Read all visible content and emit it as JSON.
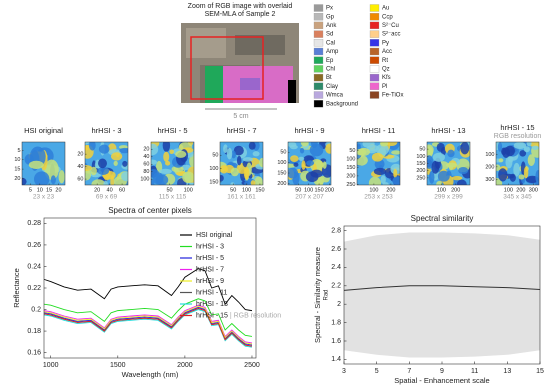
{
  "overview": {
    "title": [
      "Zoom of RGB image with overlaid",
      "SEM-MLA of Sample 2"
    ],
    "scale_label": "5 cm",
    "legend": [
      {
        "name": "Px",
        "color": "#9a9a9a"
      },
      {
        "name": "Gp",
        "color": "#b8b8b8"
      },
      {
        "name": "Ank",
        "color": "#c9a27e"
      },
      {
        "name": "Sd",
        "color": "#d9805e"
      },
      {
        "name": "Cal",
        "color": "#e6e6e6"
      },
      {
        "name": "Amp",
        "color": "#5a7fd6"
      },
      {
        "name": "Ep",
        "color": "#1fa85a"
      },
      {
        "name": "Chl",
        "color": "#5fd35f"
      },
      {
        "name": "Bt",
        "color": "#8a6a24"
      },
      {
        "name": "Clay",
        "color": "#2e8a6a"
      },
      {
        "name": "Wmca",
        "color": "#b9a8de"
      },
      {
        "name": "Background",
        "color": "#000000"
      },
      {
        "name": "Au",
        "color": "#ffee00"
      },
      {
        "name": "Ccp",
        "color": "#f08a00"
      },
      {
        "name": "S²⁻Cu",
        "color": "#e62222"
      },
      {
        "name": "S²⁻acc",
        "color": "#ffcf8a"
      },
      {
        "name": "Py",
        "color": "#3434e8"
      },
      {
        "name": "Acc",
        "color": "#b8642a"
      },
      {
        "name": "Rt",
        "color": "#cc4a00"
      },
      {
        "name": "Qz",
        "color": "#ffffff"
      },
      {
        "name": "Kfs",
        "color": "#9a66cc"
      },
      {
        "name": "Pl",
        "color": "#ee66cc"
      },
      {
        "name": "Fe-TiOx",
        "color": "#8a4422"
      }
    ]
  },
  "chart_data": [
    {
      "type": "heatmap",
      "title": "HSI original",
      "caption": "23 x 23",
      "xlim": [
        0.5,
        23.5
      ],
      "ylim": [
        0.5,
        23.5
      ],
      "xticks": [
        5,
        10,
        15,
        20
      ],
      "yticks": [
        5,
        10,
        15,
        20
      ]
    },
    {
      "type": "heatmap",
      "title": "hrHSI - 3",
      "caption": "69 x 69",
      "xlim": [
        0.5,
        69.5
      ],
      "ylim": [
        0.5,
        69.5
      ],
      "xticks": [
        20,
        40,
        60
      ],
      "yticks": [
        20,
        40,
        60
      ]
    },
    {
      "type": "heatmap",
      "title": "hrHSI - 5",
      "caption": "115 x 115",
      "xlim": [
        0.5,
        115.5
      ],
      "ylim": [
        0.5,
        115.5
      ],
      "xticks": [
        50,
        100
      ],
      "yticks": [
        20,
        40,
        60,
        80,
        100
      ]
    },
    {
      "type": "heatmap",
      "title": "hrHSI - 7",
      "caption": "161 x 161",
      "xlim": [
        0.5,
        161.5
      ],
      "ylim": [
        0.5,
        161.5
      ],
      "xticks": [
        50,
        100,
        150
      ],
      "yticks": [
        50,
        100,
        150
      ]
    },
    {
      "type": "heatmap",
      "title": "hrHSI - 9",
      "caption": "207 x 207",
      "xlim": [
        0.5,
        207.5
      ],
      "ylim": [
        0.5,
        207.5
      ],
      "xticks": [
        50,
        100,
        150,
        200
      ],
      "yticks": [
        50,
        100,
        150,
        200
      ]
    },
    {
      "type": "heatmap",
      "title": "hrHSI - 11",
      "caption": "253 x 253",
      "xlim": [
        0.5,
        253.5
      ],
      "ylim": [
        0.5,
        253.5
      ],
      "xticks": [
        100,
        200
      ],
      "yticks": [
        50,
        100,
        150,
        200,
        250
      ]
    },
    {
      "type": "heatmap",
      "title": "hrHSI - 13",
      "caption": "299 x 299",
      "xlim": [
        0.5,
        299.5
      ],
      "ylim": [
        0.5,
        299.5
      ],
      "xticks": [
        100,
        200
      ],
      "yticks": [
        50,
        100,
        150,
        200,
        250
      ]
    },
    {
      "type": "heatmap",
      "title": "hrHSI - 15",
      "subtitle": "RGB resolution",
      "caption": "345 x 345",
      "xlim": [
        0.5,
        345.5
      ],
      "ylim": [
        0.5,
        345.5
      ],
      "xticks": [
        100,
        200,
        300
      ],
      "yticks": [
        100,
        200,
        300
      ]
    },
    {
      "type": "line",
      "title": "Spectra of center pixels",
      "xlabel": "Wavelength (nm)",
      "ylabel": "Reflectance",
      "xlim": [
        950,
        2530
      ],
      "ylim": [
        0.155,
        0.285
      ],
      "xticks": [
        1000,
        1500,
        2000,
        2500
      ],
      "yticks": [
        0.16,
        0.18,
        0.2,
        0.22,
        0.24,
        0.26,
        0.28
      ],
      "x": [
        950,
        1000,
        1100,
        1200,
        1300,
        1400,
        1450,
        1500,
        1600,
        1700,
        1800,
        1900,
        1950,
        2000,
        2100,
        2150,
        2200,
        2250,
        2300,
        2350,
        2400,
        2450,
        2500
      ],
      "series": [
        {
          "name": "HSI original",
          "color": "#000000",
          "values": [
            0.228,
            0.226,
            0.221,
            0.218,
            0.219,
            0.21,
            0.219,
            0.221,
            0.222,
            0.223,
            0.222,
            0.213,
            0.221,
            0.23,
            0.238,
            0.236,
            0.22,
            0.222,
            0.205,
            0.213,
            0.207,
            0.2,
            0.199
          ]
        },
        {
          "name": "hrHSI - 3",
          "color": "#22dd22",
          "values": [
            0.205,
            0.204,
            0.2,
            0.197,
            0.198,
            0.189,
            0.197,
            0.199,
            0.2,
            0.201,
            0.2,
            0.192,
            0.199,
            0.205,
            0.21,
            0.208,
            0.195,
            0.196,
            0.181,
            0.187,
            0.181,
            0.176,
            0.175
          ]
        },
        {
          "name": "hrHSI - 5",
          "color": "#2222dd",
          "values": [
            0.197,
            0.196,
            0.192,
            0.189,
            0.19,
            0.181,
            0.189,
            0.191,
            0.192,
            0.193,
            0.192,
            0.184,
            0.191,
            0.197,
            0.202,
            0.2,
            0.187,
            0.188,
            0.173,
            0.179,
            0.173,
            0.168,
            0.167
          ]
        },
        {
          "name": "hrHSI - 7",
          "color": "#ee22ee",
          "values": [
            0.199,
            0.198,
            0.194,
            0.191,
            0.192,
            0.183,
            0.191,
            0.193,
            0.194,
            0.195,
            0.194,
            0.186,
            0.193,
            0.199,
            0.204,
            0.202,
            0.189,
            0.19,
            0.175,
            0.181,
            0.175,
            0.17,
            0.169
          ]
        },
        {
          "name": "hrHSI - 9",
          "color": "#eeee22",
          "values": [
            0.198,
            0.197,
            0.193,
            0.19,
            0.191,
            0.182,
            0.19,
            0.192,
            0.193,
            0.194,
            0.193,
            0.185,
            0.192,
            0.198,
            0.203,
            0.201,
            0.188,
            0.189,
            0.174,
            0.18,
            0.174,
            0.169,
            0.168
          ]
        },
        {
          "name": "hrHSI - 11",
          "color": "#555555",
          "values": [
            0.196,
            0.195,
            0.191,
            0.188,
            0.189,
            0.18,
            0.188,
            0.19,
            0.191,
            0.192,
            0.191,
            0.183,
            0.19,
            0.196,
            0.201,
            0.199,
            0.186,
            0.187,
            0.172,
            0.178,
            0.172,
            0.167,
            0.166
          ]
        },
        {
          "name": "hrHSI - 13",
          "color": "#22dddd",
          "values": [
            0.195,
            0.194,
            0.19,
            0.187,
            0.188,
            0.179,
            0.187,
            0.189,
            0.19,
            0.191,
            0.19,
            0.182,
            0.189,
            0.195,
            0.2,
            0.198,
            0.185,
            0.186,
            0.171,
            0.177,
            0.171,
            0.166,
            0.165
          ]
        },
        {
          "name": "hrHSI - 15",
          "note": "| RGB resolution",
          "color": "#dd2222",
          "values": [
            0.196,
            0.195,
            0.191,
            0.188,
            0.189,
            0.18,
            0.188,
            0.19,
            0.191,
            0.192,
            0.191,
            0.183,
            0.19,
            0.196,
            0.201,
            0.199,
            0.186,
            0.187,
            0.172,
            0.178,
            0.172,
            0.167,
            0.166
          ]
        }
      ]
    },
    {
      "type": "band",
      "title": "Spectral similarity",
      "xlabel": "Spatial - Enhancement scale",
      "ylabel": "Spectral - Similarity measure",
      "ylabel_unit": "Rad",
      "xlim": [
        3,
        15
      ],
      "ylim": [
        1.35,
        2.85
      ],
      "xticks": [
        3,
        5,
        7,
        9,
        11,
        13,
        15
      ],
      "yticks": [
        1.4,
        1.6,
        1.8,
        2,
        2.2,
        2.4,
        2.6,
        2.8
      ],
      "x": [
        3,
        5,
        7,
        9,
        11,
        13,
        15
      ],
      "values": [
        2.15,
        2.18,
        2.2,
        2.2,
        2.19,
        2.18,
        2.16
      ],
      "color": "#333333",
      "upper": [
        2.68,
        2.75,
        2.78,
        2.78,
        2.77,
        2.75,
        2.7
      ],
      "lower": [
        1.5,
        1.45,
        1.42,
        1.42,
        1.43,
        1.45,
        1.5
      ],
      "band_color": "#e2e2e2"
    }
  ]
}
